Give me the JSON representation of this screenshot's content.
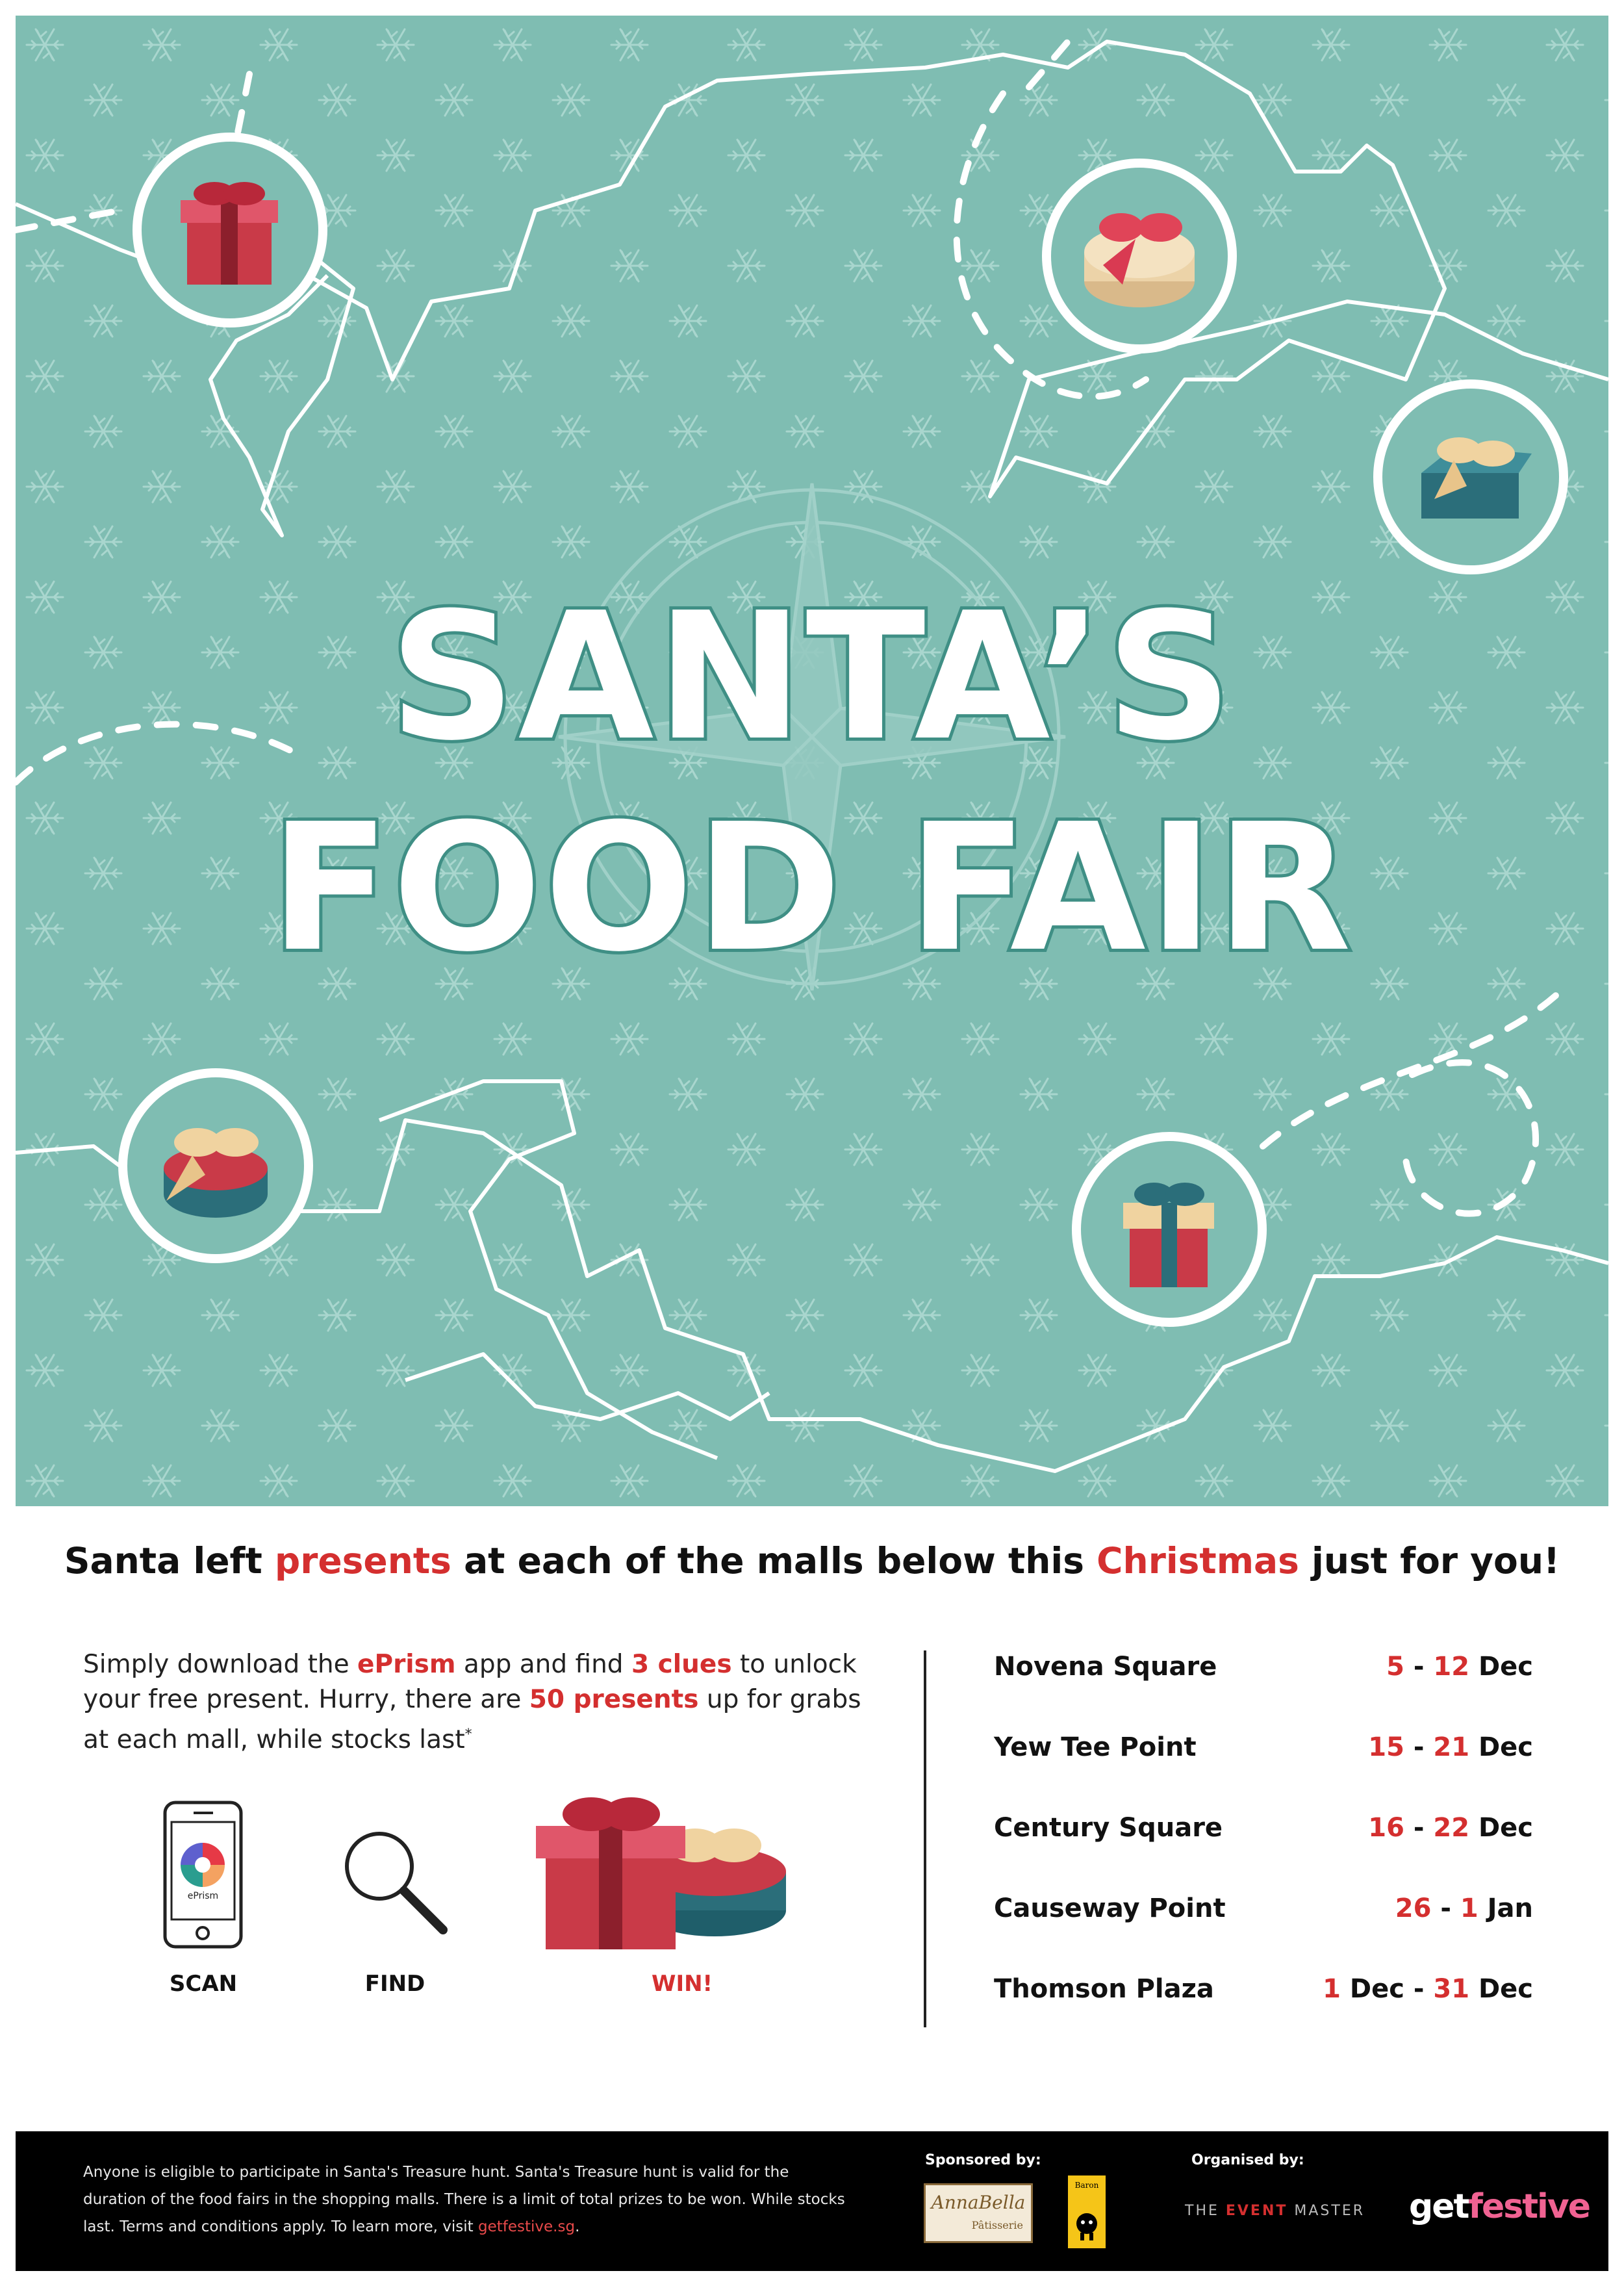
{
  "hero": {
    "title_line1": "SANTA’S",
    "title_line2": "FOOD FAIR",
    "background_color": "#7fbdb2"
  },
  "headline": {
    "part1": "Santa left ",
    "highlight1": "presents",
    "part2": " at each of the malls below this ",
    "highlight2": "Christmas",
    "part3": " just for you!"
  },
  "instructions": {
    "t1": "Simply download the ",
    "app": "ePrism",
    "t2": " app and find ",
    "clues": "3 clues",
    "t3": " to unlock your free present. Hurry, there are ",
    "presents": "50 presents",
    "t4": " up for grabs at each mall, while stocks last",
    "asterisk": "*"
  },
  "steps": {
    "scan": "SCAN",
    "find": "FIND",
    "win": "WIN!",
    "app_icon_label": "ePrism"
  },
  "malls": [
    {
      "name": "Novena Square",
      "start": "5",
      "sep": " - ",
      "end": "12",
      "unit": " Dec"
    },
    {
      "name": "Yew Tee Point",
      "start": "15",
      "sep": " - ",
      "end": "21",
      "unit": " Dec"
    },
    {
      "name": "Century Square",
      "start": "16",
      "sep": " - ",
      "end": "22",
      "unit": " Dec"
    },
    {
      "name": "Causeway Point",
      "start": "26",
      "sep": " - ",
      "end": "1",
      "unit": " Jan"
    },
    {
      "name": "Thomson Plaza",
      "start": "1",
      "sep": " Dec - ",
      "end": "31",
      "unit": " Dec"
    }
  ],
  "footer": {
    "terms": "Anyone is eligible to participate in Santa's Treasure hunt. Santa's Treasure hunt is valid for the duration of the food fairs in the shopping malls. There is a limit of total prizes to be won. While stocks last. Terms and conditions apply. To learn more, visit ",
    "link": "getfestive.sg",
    "terms_end": ".",
    "sponsored_by": "Sponsored by:",
    "organised_by": "Organised by:"
  },
  "logos": {
    "annabella": "AnnaBella",
    "annabella_sub": "Pâtisserie",
    "baron": "Baron",
    "eventmaster_pre": "THE ",
    "eventmaster_mid": "EVENT",
    "eventmaster_post": " MASTER",
    "getfestive_g": "get",
    "getfestive_f": "festive"
  },
  "colors": {
    "accent_red": "#d42f2f",
    "teal": "#7fbdb2",
    "outline_teal": "#3f8f85"
  }
}
